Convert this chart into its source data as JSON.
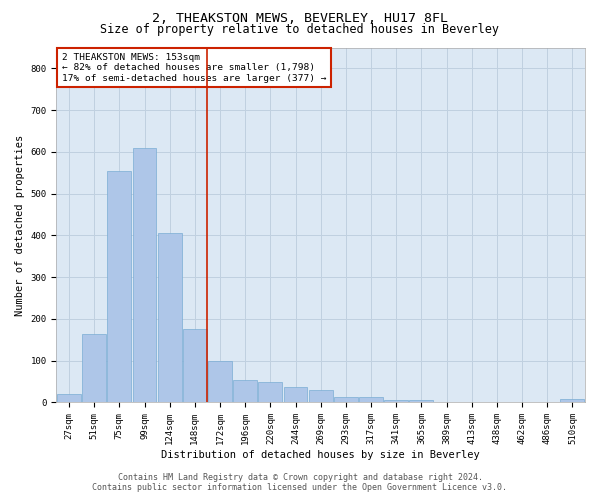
{
  "title": "2, THEAKSTON MEWS, BEVERLEY, HU17 8FL",
  "subtitle": "Size of property relative to detached houses in Beverley",
  "xlabel": "Distribution of detached houses by size in Beverley",
  "ylabel": "Number of detached properties",
  "footer_line1": "Contains HM Land Registry data © Crown copyright and database right 2024.",
  "footer_line2": "Contains public sector information licensed under the Open Government Licence v3.0.",
  "bar_labels": [
    "27sqm",
    "51sqm",
    "75sqm",
    "99sqm",
    "124sqm",
    "148sqm",
    "172sqm",
    "196sqm",
    "220sqm",
    "244sqm",
    "269sqm",
    "293sqm",
    "317sqm",
    "341sqm",
    "365sqm",
    "389sqm",
    "413sqm",
    "438sqm",
    "462sqm",
    "486sqm",
    "510sqm"
  ],
  "bar_values": [
    20,
    165,
    555,
    610,
    405,
    175,
    100,
    55,
    48,
    38,
    30,
    12,
    12,
    5,
    5,
    0,
    0,
    0,
    0,
    0,
    8
  ],
  "bar_color": "#aec6e8",
  "bar_edge_color": "#7aadd4",
  "vline_index": 5,
  "vline_color": "#cc2200",
  "annotation_text_line1": "2 THEAKSTON MEWS: 153sqm",
  "annotation_text_line2": "← 82% of detached houses are smaller (1,798)",
  "annotation_text_line3": "17% of semi-detached houses are larger (377) →",
  "annotation_box_edge_color": "#cc2200",
  "ylim": [
    0,
    850
  ],
  "yticks": [
    0,
    100,
    200,
    300,
    400,
    500,
    600,
    700,
    800
  ],
  "grid_color": "#c0d0e0",
  "background_color": "#dce8f4",
  "title_fontsize": 9.5,
  "subtitle_fontsize": 8.5,
  "axis_label_fontsize": 7.5,
  "tick_fontsize": 6.5,
  "annotation_fontsize": 6.8,
  "footer_fontsize": 6.0
}
